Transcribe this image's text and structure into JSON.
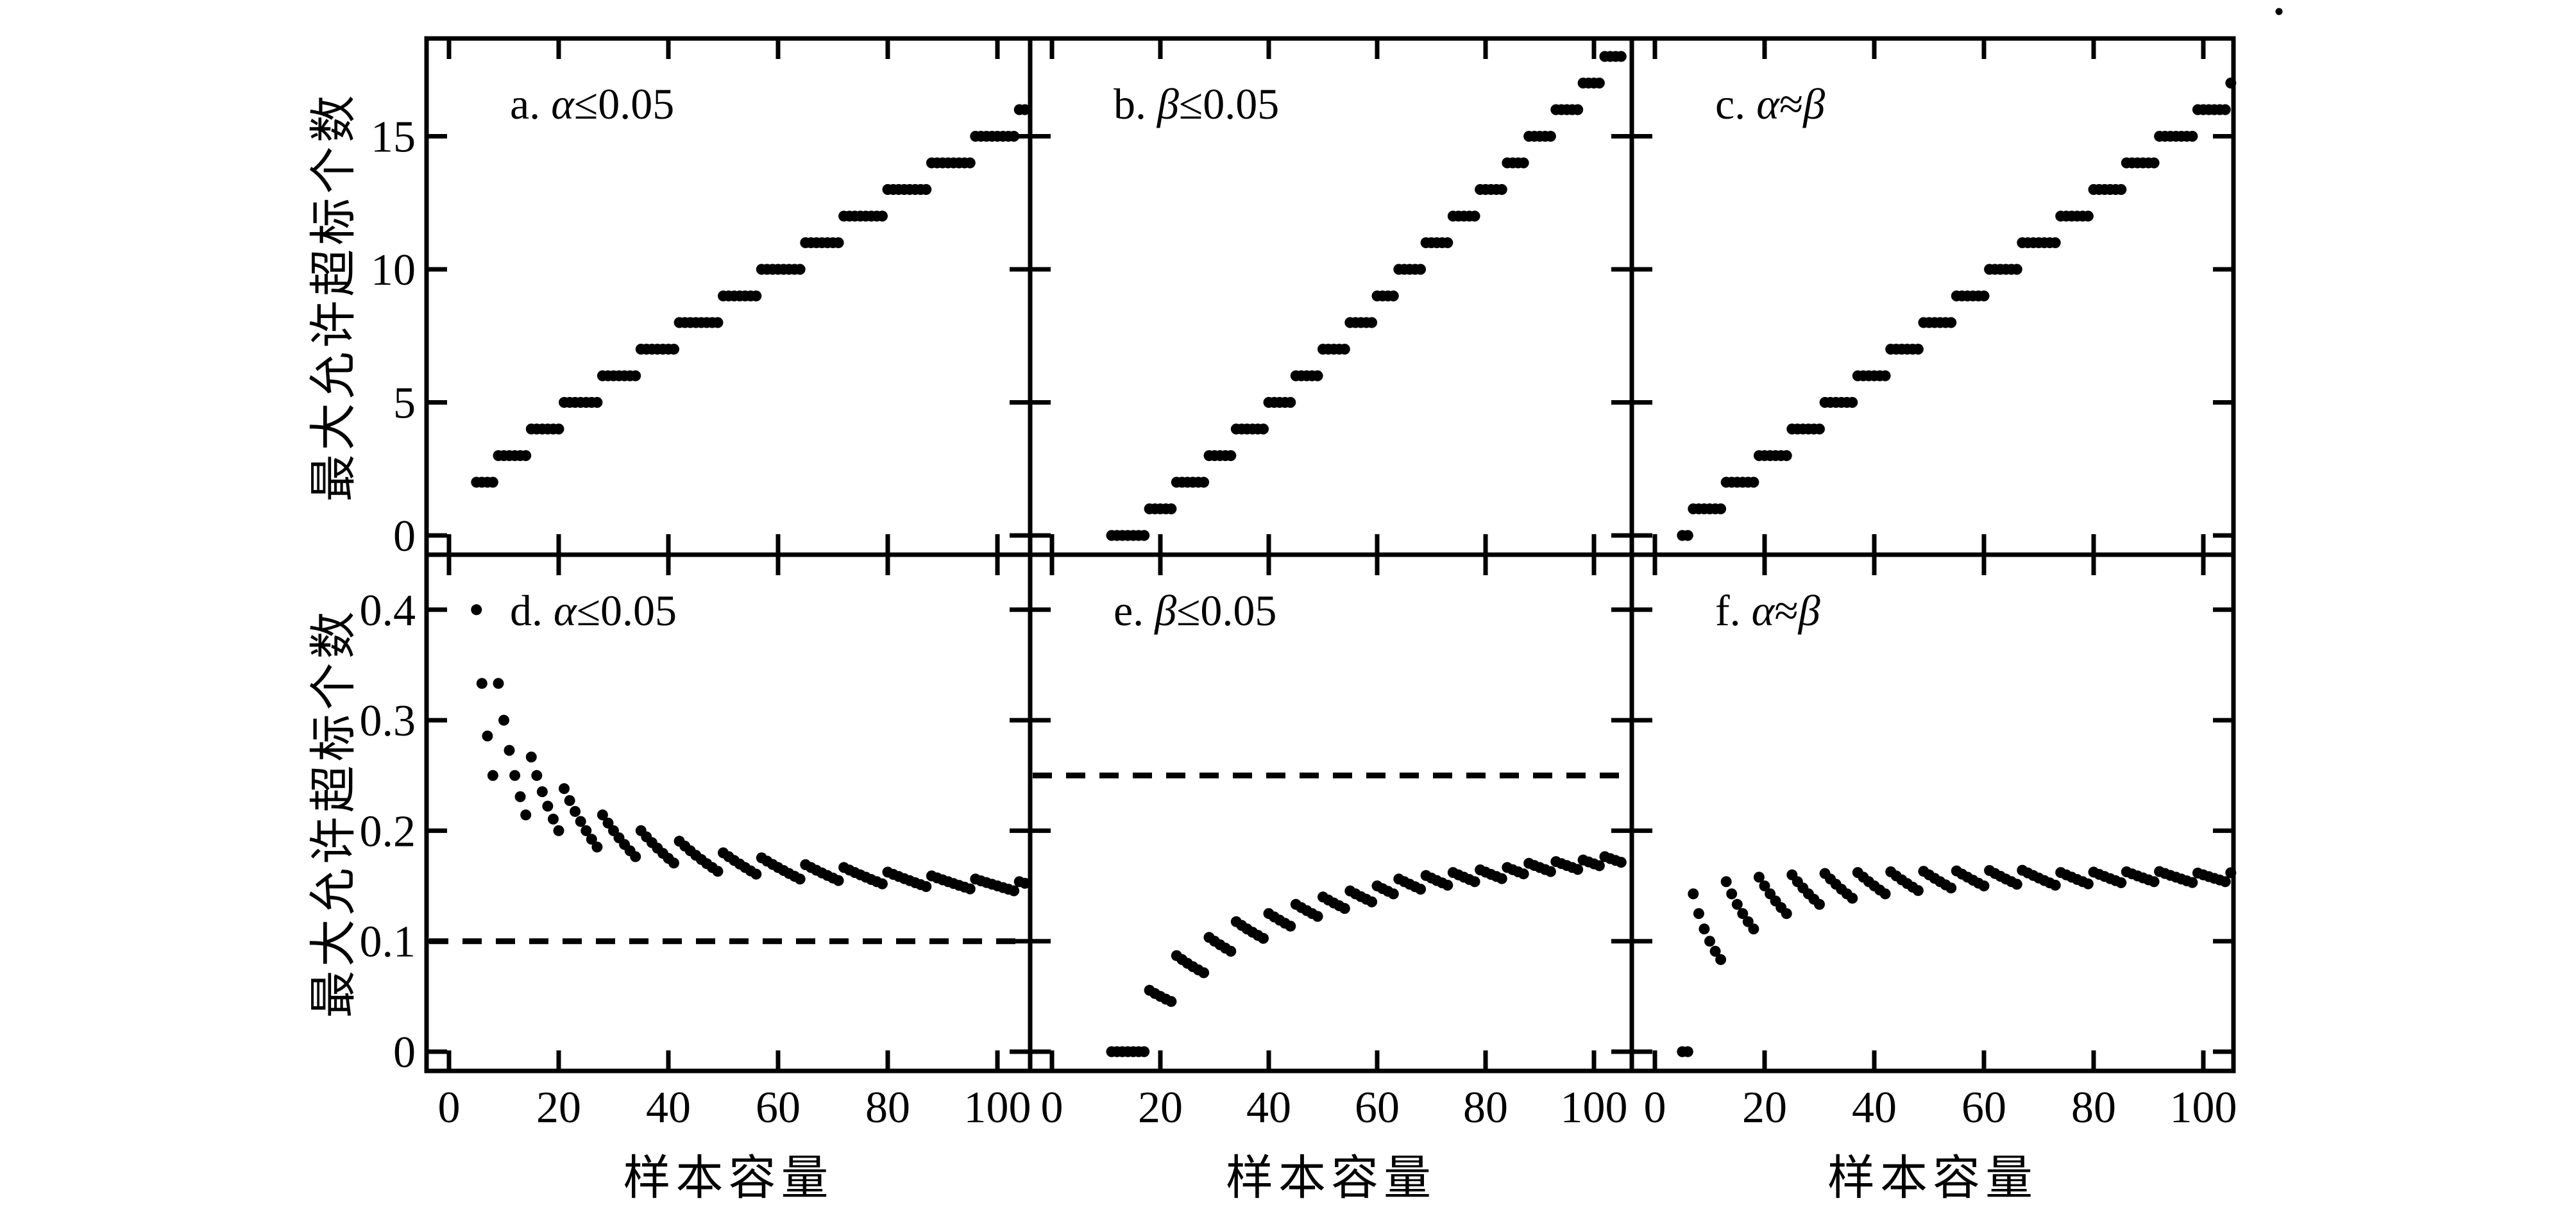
{
  "figure": {
    "background": "#ffffff",
    "ink": "#000000",
    "stray_mark": "."
  },
  "chart_data": {
    "type": "scatter",
    "layout": "2x3 panel grid with shared axes; top row = allowed exceedance count vs sample size, bottom row = allowed exceedance count divided by sample size vs sample size",
    "x_label": "样本容量",
    "y_label": "最大允许超标个数",
    "x_ticks": [
      0,
      20,
      40,
      60,
      80,
      100
    ],
    "x_range": [
      -4,
      107
    ],
    "rows": [
      {
        "name": "top",
        "y_ticks": [
          0,
          5,
          10,
          15
        ],
        "y_range": [
          -0.72,
          18.67
        ],
        "y_meaning": "maximum allowed number of exceedances (count)"
      },
      {
        "name": "bottom",
        "y_ticks": [
          "0",
          "0.1",
          "0.2",
          "0.3",
          "0.4"
        ],
        "y_range": [
          -0.017,
          0.45
        ],
        "y_meaning": "maximum allowed exceedances / sample size (ratio)"
      }
    ],
    "step_tables": {
      "alpha": [
        [
          2,
          5,
          8
        ],
        [
          3,
          9,
          14
        ],
        [
          4,
          15,
          20
        ],
        [
          5,
          21,
          27
        ],
        [
          6,
          28,
          34
        ],
        [
          7,
          35,
          41
        ],
        [
          8,
          42,
          49
        ],
        [
          9,
          50,
          56
        ],
        [
          10,
          57,
          64
        ],
        [
          11,
          65,
          71
        ],
        [
          12,
          72,
          79
        ],
        [
          13,
          80,
          87
        ],
        [
          14,
          88,
          95
        ],
        [
          15,
          96,
          103
        ],
        [
          16,
          104,
          105
        ]
      ],
      "beta": [
        [
          0,
          11,
          17
        ],
        [
          1,
          18,
          22
        ],
        [
          2,
          23,
          28
        ],
        [
          3,
          29,
          33
        ],
        [
          4,
          34,
          39
        ],
        [
          5,
          40,
          44
        ],
        [
          6,
          45,
          49
        ],
        [
          7,
          50,
          54
        ],
        [
          8,
          55,
          59
        ],
        [
          9,
          60,
          63
        ],
        [
          10,
          64,
          68
        ],
        [
          11,
          69,
          73
        ],
        [
          12,
          74,
          78
        ],
        [
          13,
          79,
          83
        ],
        [
          14,
          84,
          87
        ],
        [
          15,
          88,
          92
        ],
        [
          16,
          93,
          97
        ],
        [
          17,
          98,
          101
        ],
        [
          18,
          102,
          105
        ]
      ],
      "balanced": [
        [
          0,
          5,
          6
        ],
        [
          1,
          7,
          12
        ],
        [
          2,
          13,
          18
        ],
        [
          3,
          19,
          24
        ],
        [
          4,
          25,
          30
        ],
        [
          5,
          31,
          36
        ],
        [
          6,
          37,
          42
        ],
        [
          7,
          43,
          48
        ],
        [
          8,
          49,
          54
        ],
        [
          9,
          55,
          60
        ],
        [
          10,
          61,
          66
        ],
        [
          11,
          67,
          73
        ],
        [
          12,
          74,
          79
        ],
        [
          13,
          80,
          85
        ],
        [
          14,
          86,
          91
        ],
        [
          15,
          92,
          98
        ],
        [
          16,
          99,
          104
        ],
        [
          17,
          105,
          105
        ]
      ]
    },
    "step_table_format": "[step_value, n_start, n_end] ; one dot is plotted for every integer sample size n in [n_start, n_end]",
    "panels": [
      {
        "id": "a",
        "row": 0,
        "col": 0,
        "table": "alpha",
        "y_mode": "count",
        "title_text": "a. α≤0.05",
        "title_parts": [
          {
            "t": "a. ",
            "italic": false
          },
          {
            "t": "α",
            "italic": true
          },
          {
            "t": "≤0.05",
            "italic": false
          }
        ]
      },
      {
        "id": "b",
        "row": 0,
        "col": 1,
        "table": "beta",
        "y_mode": "count",
        "title_text": "b. β≤0.05",
        "title_parts": [
          {
            "t": "b. ",
            "italic": false
          },
          {
            "t": "β",
            "italic": true
          },
          {
            "t": "≤0.05",
            "italic": false
          }
        ]
      },
      {
        "id": "c",
        "row": 0,
        "col": 2,
        "table": "balanced",
        "y_mode": "count",
        "title_text": "c. α≈β",
        "title_parts": [
          {
            "t": "c. ",
            "italic": false
          },
          {
            "t": "α",
            "italic": true
          },
          {
            "t": "≈",
            "italic": false
          },
          {
            "t": "β",
            "italic": true
          }
        ]
      },
      {
        "id": "d",
        "row": 1,
        "col": 0,
        "table": "alpha",
        "y_mode": "ratio",
        "dashed_y": 0.1,
        "title_text": "d. α≤0.05",
        "title_parts": [
          {
            "t": "d. ",
            "italic": false
          },
          {
            "t": "α",
            "italic": true
          },
          {
            "t": "≤0.05",
            "italic": false
          }
        ]
      },
      {
        "id": "e",
        "row": 1,
        "col": 1,
        "table": "beta",
        "y_mode": "ratio",
        "dashed_y": 0.25,
        "title_text": "e. β≤0.05",
        "title_parts": [
          {
            "t": "e. ",
            "italic": false
          },
          {
            "t": "β",
            "italic": true
          },
          {
            "t": "≤0.05",
            "italic": false
          }
        ]
      },
      {
        "id": "f",
        "row": 1,
        "col": 2,
        "table": "balanced",
        "y_mode": "ratio",
        "title_text": "f. α≈β",
        "title_parts": [
          {
            "t": "f. ",
            "italic": false
          },
          {
            "t": "α",
            "italic": true
          },
          {
            "t": "≈",
            "italic": false
          },
          {
            "t": "β",
            "italic": true
          }
        ]
      }
    ]
  }
}
